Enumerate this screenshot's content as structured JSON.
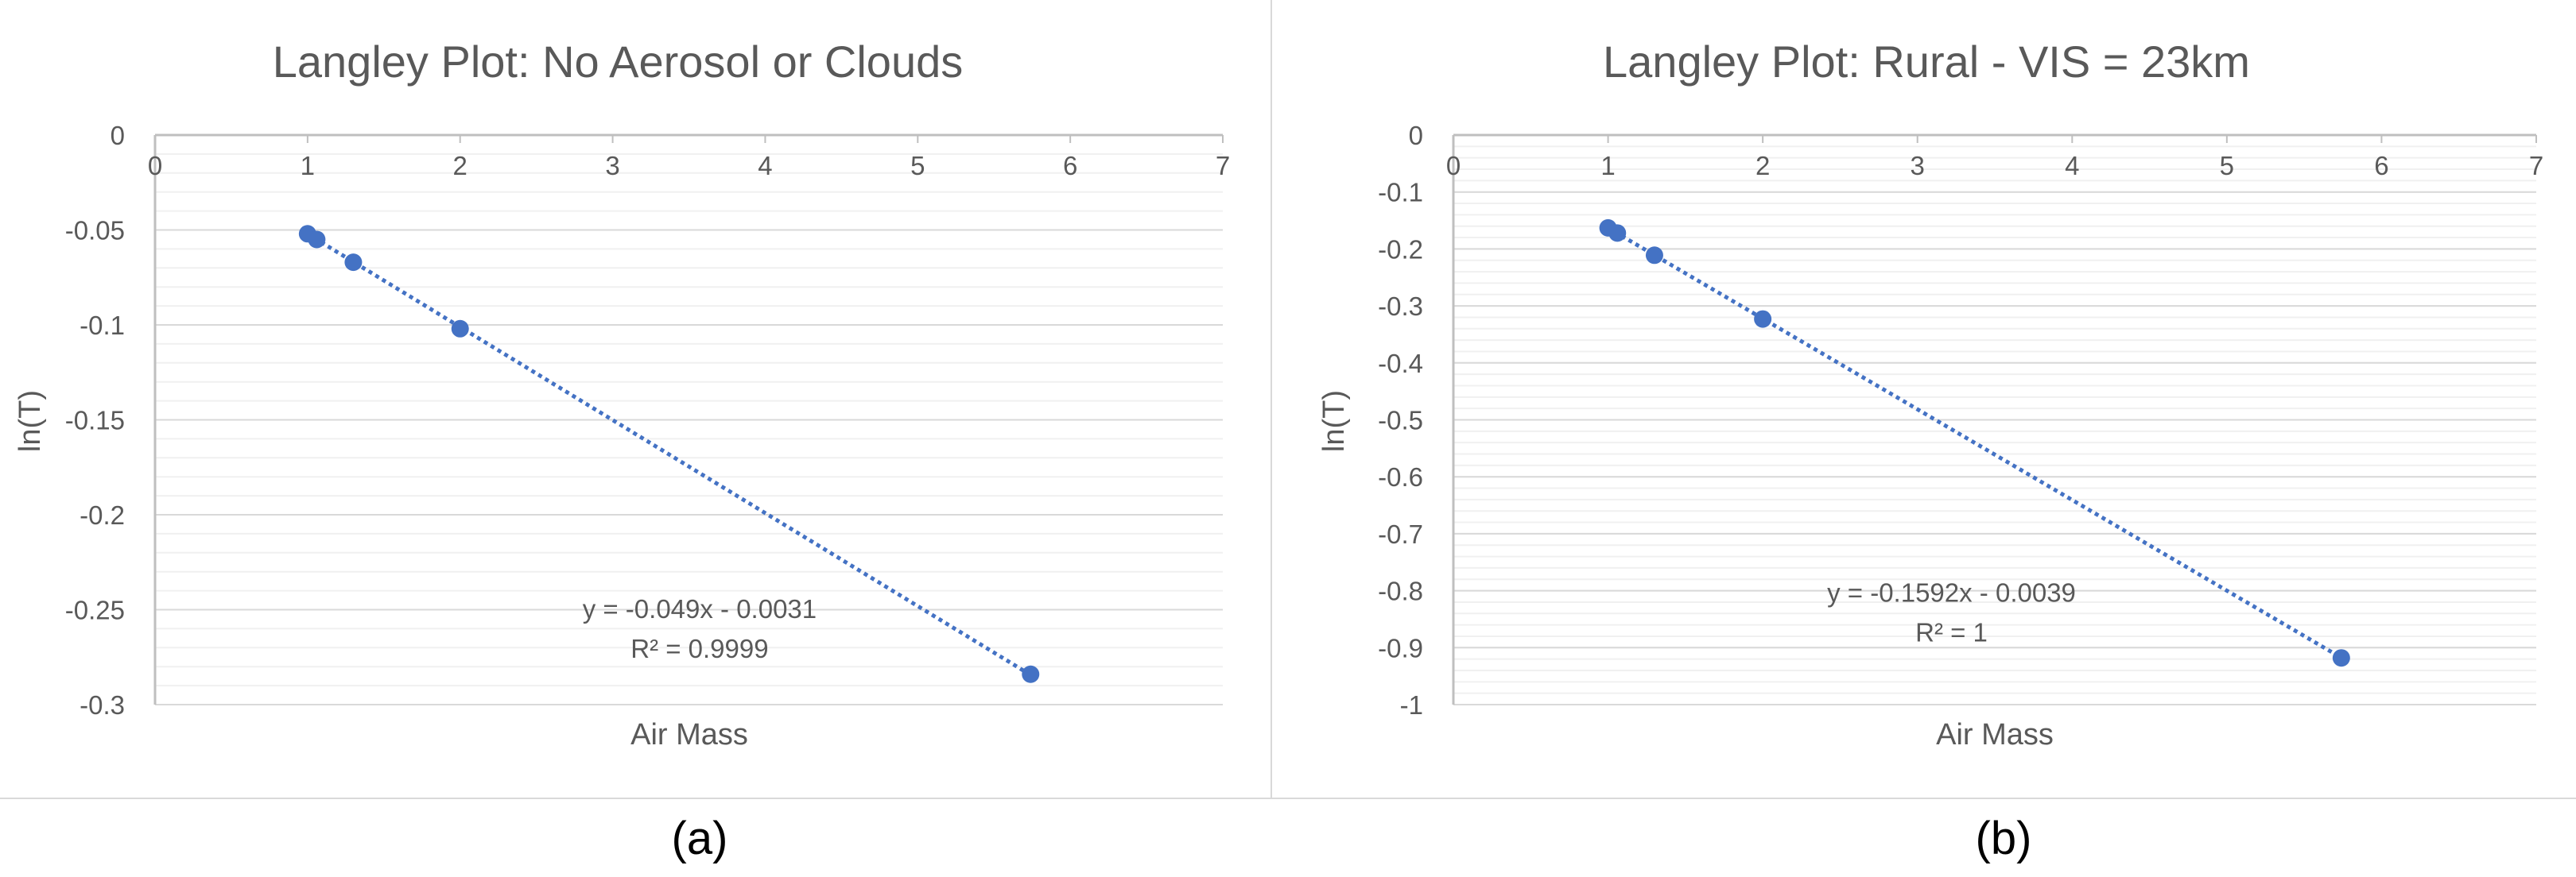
{
  "chart_data": [
    {
      "id": "a",
      "type": "scatter",
      "title": "Langley Plot: No Aerosol or Clouds",
      "xlabel": "Air Mass",
      "ylabel": "ln(T)",
      "xlim": [
        0,
        7
      ],
      "ylim": [
        -0.3,
        0
      ],
      "xticks": [
        0,
        1,
        2,
        3,
        4,
        5,
        6,
        7
      ],
      "yticks": [
        0,
        -0.05,
        -0.1,
        -0.15,
        -0.2,
        -0.25,
        -0.3
      ],
      "minor_y_step": 0.01,
      "gridlines": true,
      "series": [
        {
          "name": "ln(T)",
          "points": [
            [
              1.0,
              -0.052
            ],
            [
              1.06,
              -0.055
            ],
            [
              1.3,
              -0.067
            ],
            [
              2.0,
              -0.102
            ],
            [
              5.74,
              -0.284
            ]
          ]
        }
      ],
      "trendline": {
        "type": "linear",
        "slope": -0.049,
        "intercept": -0.0031,
        "x_range": [
          1.0,
          5.74
        ],
        "equation": "y = -0.049x - 0.0031",
        "r2": "R² = 0.9999",
        "label_anchor": [
          3.57,
          -0.2635
        ]
      },
      "caption": "(a)"
    },
    {
      "id": "b",
      "type": "scatter",
      "title": "Langley Plot: Rural - VIS = 23km",
      "xlabel": "Air Mass",
      "ylabel": "ln(T)",
      "xlim": [
        0,
        7
      ],
      "ylim": [
        -1,
        0
      ],
      "xticks": [
        0,
        1,
        2,
        3,
        4,
        5,
        6,
        7
      ],
      "yticks": [
        0,
        -0.1,
        -0.2,
        -0.3,
        -0.4,
        -0.5,
        -0.6,
        -0.7,
        -0.8,
        -0.9,
        -1
      ],
      "minor_y_step": 0.02,
      "gridlines": true,
      "series": [
        {
          "name": "ln(T)",
          "points": [
            [
              1.0,
              -0.163
            ],
            [
              1.06,
              -0.172
            ],
            [
              1.3,
              -0.211
            ],
            [
              2.0,
              -0.323
            ],
            [
              5.74,
              -0.918
            ]
          ]
        }
      ],
      "trendline": {
        "type": "linear",
        "slope": -0.1592,
        "intercept": -0.0039,
        "x_range": [
          1.0,
          5.74
        ],
        "equation": "y = -0.1592x - 0.0039",
        "r2": "R² = 1",
        "label_anchor": [
          3.22,
          -0.85
        ]
      },
      "caption": "(b)"
    }
  ],
  "colors": {
    "marker": "#4472c4",
    "trendline": "#4472c4",
    "axis": "#bfbfbf",
    "major_grid": "#d9d9d9",
    "minor_grid": "#f0f0f0",
    "tick_label": "#595959",
    "title": "#595959"
  }
}
